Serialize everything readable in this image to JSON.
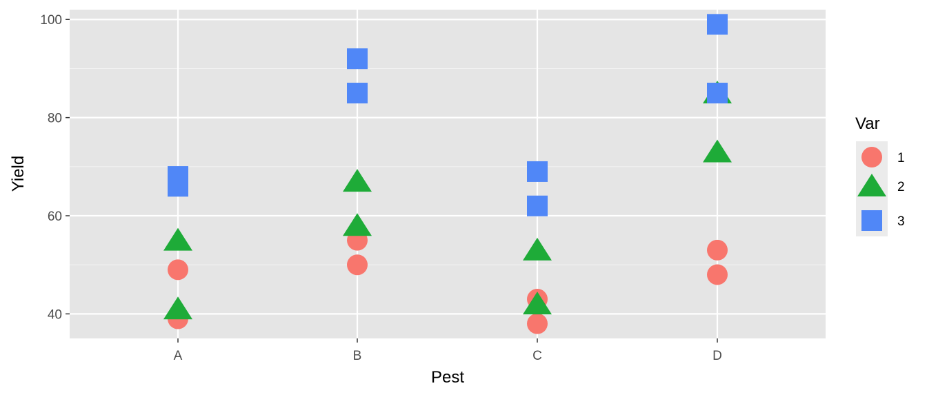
{
  "chart_data": {
    "type": "scatter",
    "xlabel": "Pest",
    "ylabel": "Yield",
    "categories": [
      "A",
      "B",
      "C",
      "D"
    ],
    "ylim": [
      35,
      102
    ],
    "yticks": [
      40,
      60,
      80,
      100
    ],
    "grid": true,
    "legend": {
      "title": "Var",
      "position": "right"
    },
    "series": [
      {
        "name": "1",
        "shape": "circle",
        "color": "#f8766d",
        "points": [
          {
            "x": "A",
            "y": 49
          },
          {
            "x": "A",
            "y": 39
          },
          {
            "x": "B",
            "y": 55
          },
          {
            "x": "B",
            "y": 50
          },
          {
            "x": "C",
            "y": 43
          },
          {
            "x": "C",
            "y": 38
          },
          {
            "x": "D",
            "y": 53
          },
          {
            "x": "D",
            "y": 48
          }
        ]
      },
      {
        "name": "2",
        "shape": "triangle",
        "color": "#1eab38",
        "points": [
          {
            "x": "A",
            "y": 55
          },
          {
            "x": "A",
            "y": 41
          },
          {
            "x": "B",
            "y": 67
          },
          {
            "x": "B",
            "y": 58
          },
          {
            "x": "C",
            "y": 53
          },
          {
            "x": "C",
            "y": 42
          },
          {
            "x": "D",
            "y": 85
          },
          {
            "x": "D",
            "y": 73
          }
        ]
      },
      {
        "name": "3",
        "shape": "square",
        "color": "#5087f7",
        "points": [
          {
            "x": "A",
            "y": 68
          },
          {
            "x": "A",
            "y": 66
          },
          {
            "x": "B",
            "y": 92
          },
          {
            "x": "B",
            "y": 85
          },
          {
            "x": "C",
            "y": 69
          },
          {
            "x": "C",
            "y": 62
          },
          {
            "x": "D",
            "y": 99
          },
          {
            "x": "D",
            "y": 85
          }
        ]
      }
    ]
  },
  "theme": {
    "panel_bg": "#e5e5e5",
    "grid_major": "#ffffff",
    "grid_minor": "#f2f2f2",
    "legend_key_bg": "#ebebeb"
  }
}
